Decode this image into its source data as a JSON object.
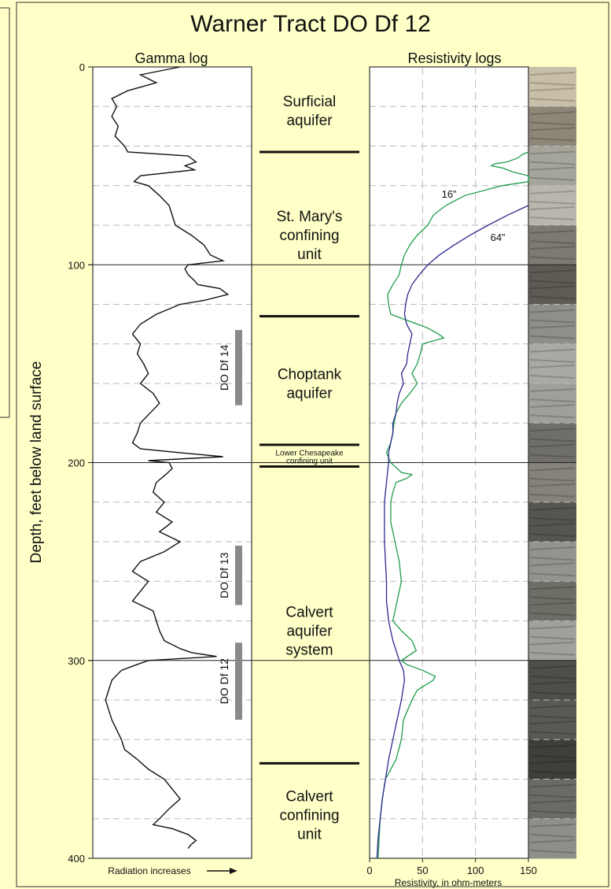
{
  "title": "Warner Tract  DO Df 12",
  "colors": {
    "page_bg": "#ffffc8",
    "gamma": "#111111",
    "res16": "#1e9c4a",
    "res64": "#2c2a90",
    "well": "#8a8a8a",
    "grid": "#bbbbbb"
  },
  "chart_data": [
    {
      "type": "line",
      "title": "Gamma log",
      "ylabel": "Depth, feet below land surface",
      "xlabel": "Radiation increases",
      "x_arrow": "right-arrow-icon",
      "ylim": [
        0,
        400
      ],
      "y_inverted": true,
      "yticks": [
        "0",
        "100",
        "200",
        "300",
        "400"
      ],
      "grid": "dashed every 20 ft",
      "series": [
        {
          "name": "",
          "depth": [
            0,
            4,
            8,
            12,
            16,
            20,
            25,
            30,
            35,
            40,
            43,
            45,
            48,
            50,
            52,
            55,
            58,
            60,
            65,
            70,
            75,
            80,
            85,
            90,
            95,
            98,
            100,
            102,
            105,
            108,
            110,
            112,
            115,
            118,
            120,
            125,
            130,
            135,
            140,
            145,
            150,
            155,
            160,
            165,
            170,
            175,
            180,
            185,
            190,
            193,
            195,
            197,
            199,
            200,
            203,
            206,
            210,
            215,
            220,
            225,
            230,
            235,
            240,
            245,
            250,
            255,
            260,
            265,
            270,
            275,
            280,
            285,
            290,
            294,
            296,
            298,
            300,
            302,
            305,
            310,
            315,
            320,
            325,
            330,
            335,
            340,
            345,
            350,
            355,
            360,
            365,
            370,
            375,
            380,
            383,
            385,
            388,
            391,
            393,
            395
          ],
          "values": [
            0.55,
            0.3,
            0.4,
            0.22,
            0.12,
            0.15,
            0.12,
            0.16,
            0.14,
            0.2,
            0.22,
            0.6,
            0.65,
            0.58,
            0.64,
            0.3,
            0.26,
            0.35,
            0.42,
            0.48,
            0.5,
            0.52,
            0.62,
            0.7,
            0.74,
            0.82,
            0.6,
            0.58,
            0.6,
            0.64,
            0.66,
            0.8,
            0.85,
            0.7,
            0.55,
            0.4,
            0.3,
            0.25,
            0.3,
            0.28,
            0.32,
            0.35,
            0.3,
            0.38,
            0.42,
            0.36,
            0.3,
            0.28,
            0.25,
            0.3,
            0.55,
            0.82,
            0.35,
            0.48,
            0.5,
            0.46,
            0.4,
            0.38,
            0.45,
            0.4,
            0.5,
            0.42,
            0.55,
            0.45,
            0.3,
            0.25,
            0.35,
            0.3,
            0.25,
            0.38,
            0.4,
            0.42,
            0.45,
            0.55,
            0.62,
            0.78,
            0.35,
            0.28,
            0.18,
            0.12,
            0.1,
            0.08,
            0.1,
            0.12,
            0.15,
            0.18,
            0.2,
            0.28,
            0.35,
            0.45,
            0.5,
            0.55,
            0.48,
            0.42,
            0.38,
            0.5,
            0.6,
            0.65,
            0.62,
            0.6
          ]
        }
      ],
      "annotations": [
        {
          "label": "DO Df 14",
          "from": 133,
          "to": 171
        },
        {
          "label": "DO Df 13",
          "from": 242,
          "to": 272
        },
        {
          "label": "DO Df 12",
          "from": 291,
          "to": 330
        }
      ]
    },
    {
      "type": "line",
      "title": "Resistivity logs",
      "xlabel": "Resistivity, in ohm-meters",
      "xlim": [
        0,
        150
      ],
      "xticks": [
        "0",
        "50",
        "100",
        "150"
      ],
      "ylim": [
        0,
        400
      ],
      "y_inverted": true,
      "grid": "dashed",
      "series": [
        {
          "name": "16”",
          "depth": [
            43,
            44,
            46,
            48,
            49,
            50,
            51,
            53,
            55,
            57,
            58,
            60,
            65,
            70,
            75,
            80,
            85,
            90,
            95,
            100,
            105,
            110,
            115,
            120,
            125,
            128,
            130,
            132,
            135,
            137,
            140,
            145,
            150,
            155,
            160,
            165,
            170,
            175,
            180,
            185,
            190,
            195,
            200,
            205,
            206,
            208,
            210,
            215,
            220,
            230,
            240,
            250,
            260,
            270,
            280,
            285,
            290,
            295,
            300,
            302,
            305,
            308,
            310,
            315,
            320,
            330,
            340,
            350,
            360,
            370,
            380,
            390,
            400
          ],
          "values": [
            150,
            145,
            140,
            130,
            118,
            115,
            125,
            135,
            150,
            150,
            150,
            125,
            90,
            72,
            60,
            55,
            45,
            38,
            33,
            30,
            28,
            22,
            17,
            18,
            20,
            35,
            45,
            55,
            65,
            70,
            50,
            48,
            45,
            40,
            45,
            38,
            30,
            25,
            23,
            22,
            20,
            16,
            20,
            30,
            40,
            35,
            25,
            22,
            20,
            20,
            24,
            28,
            30,
            26,
            22,
            30,
            40,
            44,
            30,
            35,
            50,
            62,
            60,
            45,
            40,
            32,
            30,
            25,
            15,
            12,
            10,
            9,
            8
          ]
        },
        {
          "name": "64”",
          "depth": [
            70,
            75,
            80,
            85,
            90,
            95,
            100,
            105,
            110,
            115,
            120,
            125,
            130,
            135,
            140,
            145,
            150,
            155,
            160,
            165,
            170,
            175,
            180,
            185,
            190,
            195,
            200,
            210,
            220,
            230,
            240,
            250,
            260,
            270,
            280,
            290,
            295,
            300,
            305,
            310,
            320,
            330,
            340,
            350,
            360,
            370,
            380,
            390,
            400
          ],
          "values": [
            150,
            130,
            112,
            95,
            80,
            66,
            55,
            47,
            40,
            36,
            34,
            33,
            35,
            40,
            38,
            36,
            35,
            30,
            32,
            28,
            26,
            25,
            22,
            22,
            20,
            18,
            18,
            16,
            14,
            14,
            14,
            15,
            16,
            16,
            18,
            22,
            25,
            28,
            32,
            33,
            30,
            26,
            22,
            18,
            15,
            12,
            10,
            8,
            7
          ]
        }
      ]
    }
  ],
  "units": [
    {
      "label": "Surficial\naquifer",
      "center": 22,
      "top_line": null
    },
    {
      "label": "St. Mary's\nconfining\nunit",
      "center": 85,
      "top_line": 43
    },
    {
      "label": "Choptank\naquifer",
      "center": 160,
      "top_line": 126
    },
    {
      "label": "Lower Chesapeake\nconfining unit",
      "center": 197,
      "top_line": 191,
      "small": true
    },
    {
      "label": "Calvert\naquifer\nsystem",
      "center": 285,
      "top_line": 202
    },
    {
      "label": "Calvert\nconfining\nunit",
      "center": 378,
      "top_line": 352
    }
  ],
  "core_strip": [
    "#c8bfa8",
    "#8d8778",
    "#a6a59b",
    "#b9b7ad",
    "#7c7a71",
    "#5d5b54",
    "#8f8e88",
    "#a8aaa6",
    "#9fa09b",
    "#6f6e69",
    "#86837a",
    "#565550",
    "#93948f",
    "#6e6d66",
    "#a0a19c",
    "#4f4e49",
    "#5a5954",
    "#3f3e3a",
    "#6b6a65",
    "#8e8f8a"
  ]
}
